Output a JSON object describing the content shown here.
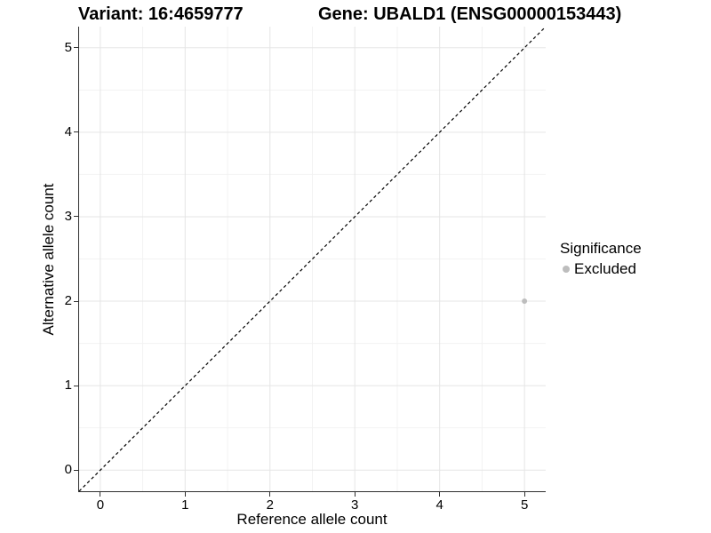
{
  "header": {
    "variant_title": "Variant: 16:4659777",
    "gene_title": "Gene: UBALD1 (ENSG00000153443)"
  },
  "chart_data": {
    "type": "scatter",
    "xlabel": "Reference allele count",
    "ylabel": "Alternative allele count",
    "xlim": [
      -0.25,
      5.25
    ],
    "ylim": [
      -0.25,
      5.25
    ],
    "xticks": [
      0,
      1,
      2,
      3,
      4,
      5
    ],
    "yticks": [
      0,
      1,
      2,
      3,
      4,
      5
    ],
    "minor_ticks": [
      0.5,
      1.5,
      2.5,
      3.5,
      4.5
    ],
    "grid": true,
    "points": [
      {
        "x": 5,
        "y": 2,
        "series": "Excluded"
      }
    ],
    "diagonal_line": {
      "from": [
        -0.25,
        -0.25
      ],
      "to": [
        5.25,
        5.25
      ],
      "style": "dashed",
      "color": "#000000"
    },
    "legend": {
      "title": "Significance",
      "position": "right",
      "entries": [
        {
          "label": "Excluded",
          "color": "#bdbdbd",
          "marker": "circle"
        }
      ]
    },
    "colors": {
      "point": "#bdbdbd",
      "grid_major": "#e5e5e5",
      "grid_minor": "#f2f2f2",
      "axis_line": "#2f2f2f",
      "text": "#000000"
    }
  }
}
